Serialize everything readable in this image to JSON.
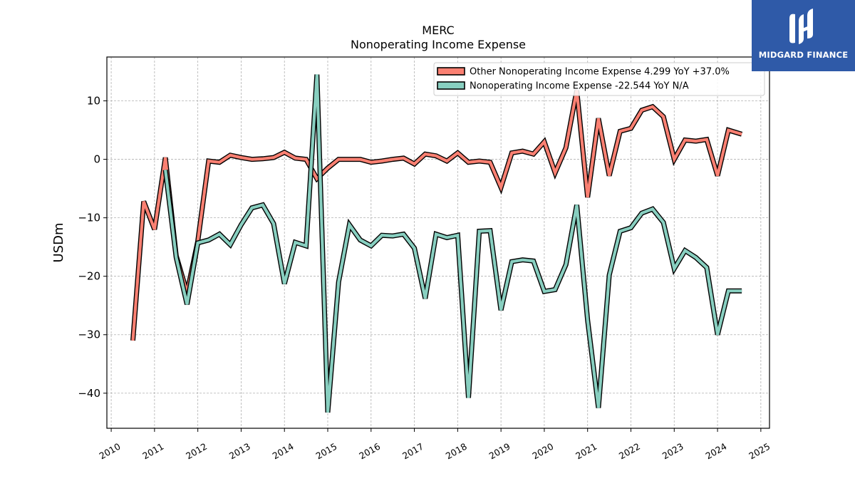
{
  "brand": {
    "name": "MIDGARD FINANCE",
    "color": "#2f5aa8"
  },
  "chart_data": {
    "type": "line",
    "title": "MERC",
    "subtitle": "Nonoperating Income Expense",
    "ylabel": "USDm",
    "xlabel": "",
    "xlim": [
      2009.9,
      2025.2
    ],
    "ylim": [
      -46,
      17.5
    ],
    "yticks": [
      10,
      0,
      -10,
      -20,
      -30,
      -40
    ],
    "ytick_labels": [
      "10",
      "0",
      "−10",
      "−20",
      "−30",
      "−40"
    ],
    "xticks": [
      2010,
      2011,
      2012,
      2013,
      2014,
      2015,
      2016,
      2017,
      2018,
      2019,
      2020,
      2021,
      2022,
      2023,
      2024,
      2025
    ],
    "xtick_labels": [
      "2010",
      "2011",
      "2012",
      "2013",
      "2014",
      "2015",
      "2016",
      "2017",
      "2018",
      "2019",
      "2020",
      "2021",
      "2022",
      "2023",
      "2024",
      "2025"
    ],
    "grid": true,
    "legend_position": "top-right",
    "series": [
      {
        "name": "Other Nonoperating Income Expense  4.299 YoY +37.0%",
        "color": "#fa8072",
        "points": [
          [
            2010.5,
            -31
          ],
          [
            2010.75,
            -7.2
          ],
          [
            2011.0,
            -12
          ],
          [
            2011.25,
            0.3
          ],
          [
            2011.5,
            -16.5
          ],
          [
            2011.75,
            -22.8
          ],
          [
            2012.0,
            -14
          ],
          [
            2012.25,
            -0.3
          ],
          [
            2012.5,
            -0.5
          ],
          [
            2012.75,
            0.7
          ],
          [
            2013.0,
            0.3
          ],
          [
            2013.25,
            0
          ],
          [
            2013.5,
            0.1
          ],
          [
            2013.75,
            0.3
          ],
          [
            2014.0,
            1.2
          ],
          [
            2014.25,
            0.2
          ],
          [
            2014.5,
            0
          ],
          [
            2014.75,
            -3.3
          ],
          [
            2015.0,
            -1.5
          ],
          [
            2015.25,
            0
          ],
          [
            2015.5,
            0
          ],
          [
            2015.75,
            0
          ],
          [
            2016.0,
            -0.5
          ],
          [
            2016.25,
            -0.3
          ],
          [
            2016.5,
            0
          ],
          [
            2016.75,
            0.2
          ],
          [
            2017.0,
            -0.8
          ],
          [
            2017.25,
            0.9
          ],
          [
            2017.5,
            0.6
          ],
          [
            2017.75,
            -0.3
          ],
          [
            2018.0,
            1.1
          ],
          [
            2018.25,
            -0.5
          ],
          [
            2018.5,
            -0.3
          ],
          [
            2018.75,
            -0.5
          ],
          [
            2019.0,
            -4.8
          ],
          [
            2019.25,
            1.1
          ],
          [
            2019.5,
            1.4
          ],
          [
            2019.75,
            0.9
          ],
          [
            2020.0,
            3.0
          ],
          [
            2020.25,
            -2.3
          ],
          [
            2020.5,
            2.0
          ],
          [
            2020.75,
            11.8
          ],
          [
            2021.0,
            -6.5
          ],
          [
            2021.25,
            7.0
          ],
          [
            2021.5,
            -2.8
          ],
          [
            2021.75,
            4.8
          ],
          [
            2022.0,
            5.3
          ],
          [
            2022.25,
            8.4
          ],
          [
            2022.5,
            9.0
          ],
          [
            2022.75,
            7.3
          ],
          [
            2023.0,
            0
          ],
          [
            2023.25,
            3.3
          ],
          [
            2023.5,
            3.1
          ],
          [
            2023.75,
            3.4
          ],
          [
            2024.0,
            -2.8
          ],
          [
            2024.25,
            5.0
          ],
          [
            2024.56,
            4.3
          ]
        ]
      },
      {
        "name": "Nonoperating Income Expense  -22.544 YoY N/A",
        "color": "#88cfc0",
        "points": [
          [
            2011.25,
            -1.8
          ],
          [
            2011.5,
            -16.8
          ],
          [
            2011.75,
            -24.8
          ],
          [
            2012.0,
            -14.3
          ],
          [
            2012.25,
            -13.8
          ],
          [
            2012.5,
            -12.8
          ],
          [
            2012.75,
            -14.6
          ],
          [
            2013.0,
            -11.2
          ],
          [
            2013.25,
            -8.3
          ],
          [
            2013.5,
            -7.8
          ],
          [
            2013.75,
            -11
          ],
          [
            2014.0,
            -21.3
          ],
          [
            2014.25,
            -14.2
          ],
          [
            2014.5,
            -14.8
          ],
          [
            2014.75,
            14.5
          ],
          [
            2015.0,
            -43.3
          ],
          [
            2015.25,
            -21
          ],
          [
            2015.5,
            -11.2
          ],
          [
            2015.75,
            -13.8
          ],
          [
            2016.0,
            -14.8
          ],
          [
            2016.25,
            -13
          ],
          [
            2016.5,
            -13.1
          ],
          [
            2016.75,
            -12.8
          ],
          [
            2017.0,
            -15.2
          ],
          [
            2017.25,
            -23.8
          ],
          [
            2017.5,
            -12.8
          ],
          [
            2017.75,
            -13.4
          ],
          [
            2018.0,
            -13
          ],
          [
            2018.25,
            -40.8
          ],
          [
            2018.5,
            -12.3
          ],
          [
            2018.75,
            -12.2
          ],
          [
            2019.0,
            -25.8
          ],
          [
            2019.25,
            -17.5
          ],
          [
            2019.5,
            -17.2
          ],
          [
            2019.75,
            -17.4
          ],
          [
            2020.0,
            -22.6
          ],
          [
            2020.25,
            -22.3
          ],
          [
            2020.5,
            -18
          ],
          [
            2020.75,
            -7.8
          ],
          [
            2021.0,
            -27.5
          ],
          [
            2021.25,
            -42.5
          ],
          [
            2021.5,
            -19.8
          ],
          [
            2021.75,
            -12.3
          ],
          [
            2022.0,
            -11.7
          ],
          [
            2022.25,
            -9.2
          ],
          [
            2022.5,
            -8.5
          ],
          [
            2022.75,
            -10.8
          ],
          [
            2023.0,
            -18.7
          ],
          [
            2023.25,
            -15.6
          ],
          [
            2023.5,
            -16.8
          ],
          [
            2023.75,
            -18.5
          ],
          [
            2024.0,
            -30
          ],
          [
            2024.25,
            -22.5
          ],
          [
            2024.56,
            -22.5
          ]
        ]
      }
    ]
  }
}
